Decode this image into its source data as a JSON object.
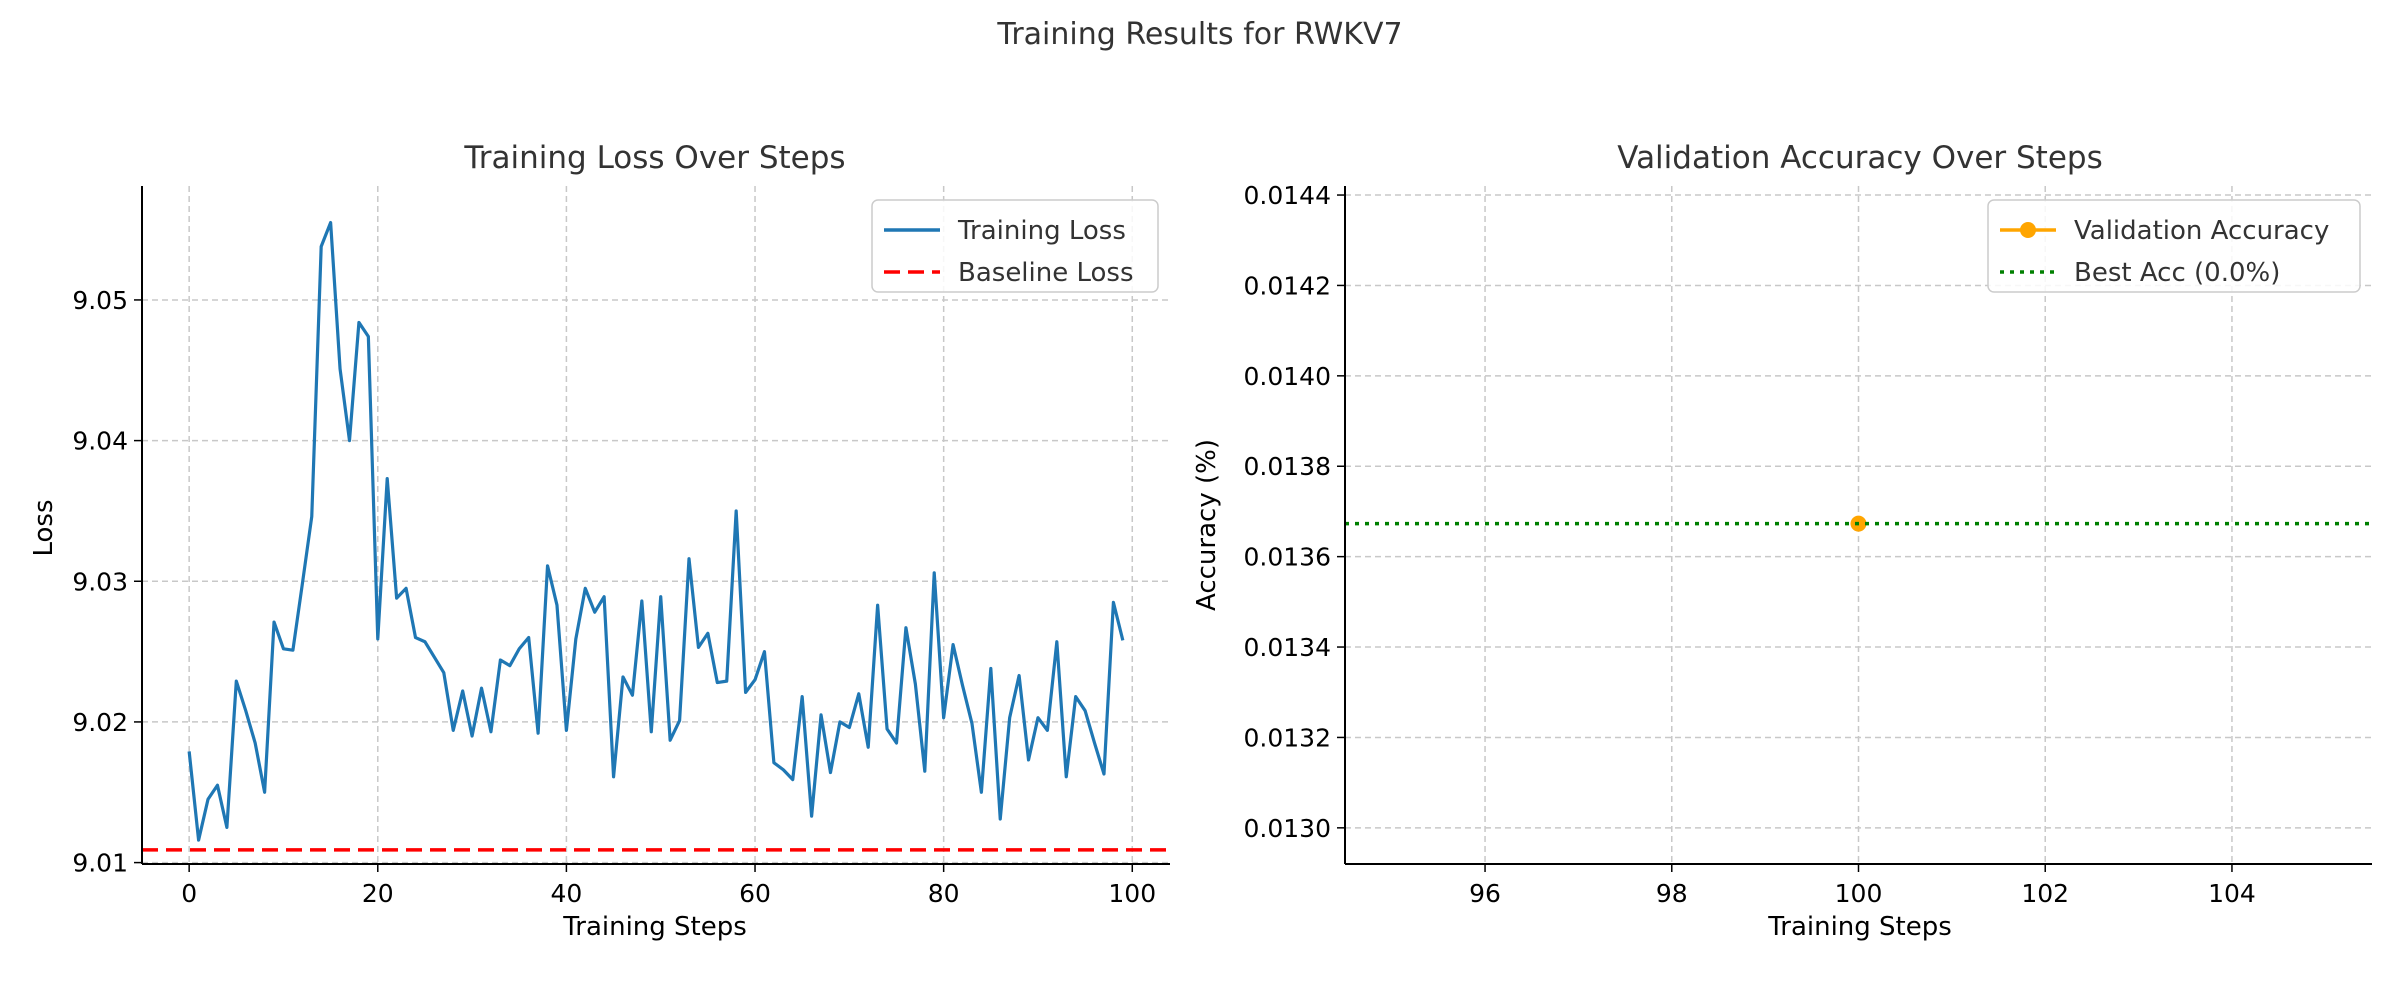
{
  "suptitle": "Training Results for RWKV7",
  "chart_data": [
    {
      "type": "line",
      "title": "Training Loss Over Steps",
      "xlabel": "Training Steps",
      "ylabel": "Loss",
      "xlim": [
        -5,
        104
      ],
      "ylim": [
        9.0099,
        9.0581
      ],
      "xticks": [
        0,
        20,
        40,
        60,
        80,
        100
      ],
      "yticks": [
        9.01,
        9.02,
        9.03,
        9.04,
        9.05
      ],
      "grid": true,
      "legend": "top-right",
      "series": [
        {
          "name": "Training Loss",
          "color": "#1f77b4",
          "style": "solid",
          "x": [
            0,
            1,
            2,
            3,
            4,
            5,
            6,
            7,
            8,
            9,
            10,
            11,
            12,
            13,
            14,
            15,
            16,
            17,
            18,
            19,
            20,
            21,
            22,
            23,
            24,
            25,
            26,
            27,
            28,
            29,
            30,
            31,
            32,
            33,
            34,
            35,
            36,
            37,
            38,
            39,
            40,
            41,
            42,
            43,
            44,
            45,
            46,
            47,
            48,
            49,
            50,
            51,
            52,
            53,
            54,
            55,
            56,
            57,
            58,
            59,
            60,
            61,
            62,
            63,
            64,
            65,
            66,
            67,
            68,
            69,
            70,
            71,
            72,
            73,
            74,
            75,
            76,
            77,
            78,
            79,
            80,
            81,
            82,
            83,
            84,
            85,
            86,
            87,
            88,
            89,
            90,
            91,
            92,
            93,
            94,
            95,
            96,
            97,
            98,
            99
          ],
          "y": [
            9.0179,
            9.0116,
            9.0145,
            9.0155,
            9.0125,
            9.0229,
            9.0208,
            9.0185,
            9.015,
            9.0271,
            9.0252,
            9.0251,
            9.0298,
            9.0346,
            9.0538,
            9.0555,
            9.0451,
            9.04,
            9.0484,
            9.0474,
            9.0259,
            9.0373,
            9.0288,
            9.0295,
            9.026,
            9.0257,
            9.0246,
            9.0235,
            9.0194,
            9.0222,
            9.019,
            9.0224,
            9.0193,
            9.0244,
            9.024,
            9.0252,
            9.026,
            9.0192,
            9.0311,
            9.0283,
            9.0194,
            9.0259,
            9.0295,
            9.0278,
            9.0289,
            9.0161,
            9.0232,
            9.0219,
            9.0286,
            9.0193,
            9.0289,
            9.0187,
            9.0201,
            9.0316,
            9.0253,
            9.0263,
            9.0228,
            9.0229,
            9.035,
            9.0221,
            9.023,
            9.025,
            9.0171,
            9.0166,
            9.0159,
            9.0218,
            9.0133,
            9.0205,
            9.0164,
            9.02,
            9.0196,
            9.022,
            9.0182,
            9.0283,
            9.0195,
            9.0185,
            9.0267,
            9.0227,
            9.0165,
            9.0306,
            9.0203,
            9.0255,
            9.0226,
            9.0199,
            9.015,
            9.0238,
            9.0131,
            9.0203,
            9.0233,
            9.0173,
            9.0203,
            9.0194,
            9.0257,
            9.0161,
            9.0218,
            9.0208,
            9.0185,
            9.0163,
            9.0285,
            9.0258
          ]
        },
        {
          "name": "Baseline Loss",
          "color": "#ff0000",
          "style": "dashed",
          "hline": 9.0109
        }
      ]
    },
    {
      "type": "scatter",
      "title": "Validation Accuracy Over Steps",
      "xlabel": "Training Steps",
      "ylabel": "Accuracy (%)",
      "xlim": [
        94.5,
        105.5
      ],
      "ylim": [
        0.01292,
        0.01442
      ],
      "xticks": [
        96,
        98,
        100,
        102,
        104
      ],
      "yticks": [
        0.013,
        0.0132,
        0.0134,
        0.0136,
        0.0138,
        0.014,
        0.0142,
        0.0144
      ],
      "ytick_labels": [
        "0.0130",
        "0.0132",
        "0.0134",
        "0.0136",
        "0.0138",
        "0.0140",
        "0.0142",
        "0.0144"
      ],
      "grid": true,
      "legend": "top-right",
      "series": [
        {
          "name": "Validation Accuracy",
          "color": "#ffa500",
          "style": "solid-marker",
          "x": [
            100
          ],
          "y": [
            0.013673
          ]
        },
        {
          "name": "Best Acc (0.0%)",
          "color": "#008000",
          "style": "dotted",
          "hline": 0.013673
        }
      ]
    }
  ]
}
